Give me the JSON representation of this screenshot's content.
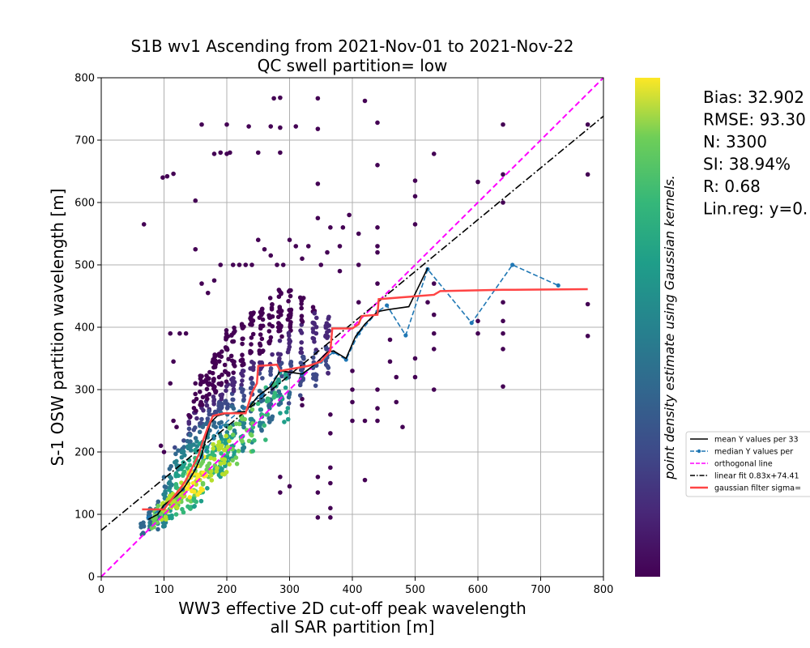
{
  "chart_data": {
    "type": "scatter",
    "title": "S1B wv1 Ascending from 2021-Nov-01 to 2021-Nov-22",
    "subtitle": "QC swell partition= low",
    "xlabel_line1": "WW3 effective 2D cut-off peak wavelength",
    "xlabel_line2": "all SAR partition [m]",
    "ylabel": "S-1 OSW partition wavelength [m]",
    "xlim": [
      0,
      800
    ],
    "ylim": [
      0,
      800
    ],
    "xticks": [
      0,
      100,
      200,
      300,
      400,
      500,
      600,
      700,
      800
    ],
    "yticks": [
      0,
      100,
      200,
      300,
      400,
      500,
      600,
      700,
      800
    ],
    "grid": true,
    "colorbar": {
      "colormap": "viridis",
      "label": "point density estimate using Gaussian kernels."
    },
    "stats": [
      "Bias: 32.902",
      "RMSE: 93.30",
      "N: 3300",
      "SI: 38.94%",
      "R: 0.68",
      "Lin.reg: y=0."
    ],
    "legend": {
      "location": "right, outside plot",
      "entries": [
        {
          "label": "mean Y values per 33",
          "color": "#000000",
          "style": "solid"
        },
        {
          "label": "median Y values per",
          "color": "#1f77b4",
          "style": "dashed-marker"
        },
        {
          "label": "orthogonal line",
          "color": "#ff00ff",
          "style": "dashed"
        },
        {
          "label": "linear fit 0.83x+74.41",
          "color": "#000000",
          "style": "dashdot"
        },
        {
          "label": "gaussian filter sigma=",
          "color": "#ff4444",
          "style": "solid-thick"
        }
      ]
    },
    "orthogonal_line": {
      "slope": 1,
      "intercept": 0
    },
    "linear_fit": {
      "slope": 0.83,
      "intercept": 74.41
    },
    "mean_line": [
      [
        75,
        92
      ],
      [
        90,
        100
      ],
      [
        100,
        115
      ],
      [
        120,
        130
      ],
      [
        130,
        140
      ],
      [
        140,
        155
      ],
      [
        150,
        172
      ],
      [
        160,
        195
      ],
      [
        170,
        235
      ],
      [
        175,
        248
      ],
      [
        185,
        258
      ],
      [
        200,
        262
      ],
      [
        230,
        265
      ],
      [
        250,
        290
      ],
      [
        270,
        305
      ],
      [
        285,
        330
      ],
      [
        300,
        328
      ],
      [
        320,
        325
      ],
      [
        340,
        340
      ],
      [
        360,
        360
      ],
      [
        370,
        362
      ],
      [
        390,
        350
      ],
      [
        405,
        385
      ],
      [
        420,
        405
      ],
      [
        440,
        425
      ],
      [
        455,
        428
      ],
      [
        490,
        433
      ],
      [
        520,
        495
      ]
    ],
    "median_line": [
      [
        75,
        95
      ],
      [
        100,
        112
      ],
      [
        130,
        140
      ],
      [
        160,
        192
      ],
      [
        190,
        240
      ],
      [
        220,
        265
      ],
      [
        255,
        290
      ],
      [
        285,
        330
      ],
      [
        320,
        325
      ],
      [
        350,
        345
      ],
      [
        370,
        360
      ],
      [
        390,
        348
      ],
      [
        410,
        390
      ],
      [
        440,
        425
      ],
      [
        455,
        435
      ],
      [
        485,
        387
      ],
      [
        520,
        493
      ],
      [
        590,
        407
      ],
      [
        655,
        500
      ],
      [
        728,
        467
      ]
    ],
    "gaussian_line": [
      [
        65,
        108
      ],
      [
        100,
        108
      ],
      [
        105,
        115
      ],
      [
        115,
        128
      ],
      [
        125,
        140
      ],
      [
        135,
        155
      ],
      [
        145,
        175
      ],
      [
        155,
        195
      ],
      [
        162,
        218
      ],
      [
        170,
        240
      ],
      [
        178,
        258
      ],
      [
        195,
        262
      ],
      [
        230,
        262
      ],
      [
        240,
        295
      ],
      [
        248,
        310
      ],
      [
        250,
        338
      ],
      [
        280,
        340
      ],
      [
        285,
        330
      ],
      [
        330,
        338
      ],
      [
        350,
        345
      ],
      [
        365,
        362
      ],
      [
        368,
        398
      ],
      [
        400,
        398
      ],
      [
        410,
        405
      ],
      [
        415,
        418
      ],
      [
        440,
        420
      ],
      [
        442,
        445
      ],
      [
        480,
        448
      ],
      [
        530,
        452
      ],
      [
        540,
        458
      ],
      [
        640,
        460
      ],
      [
        775,
        461
      ]
    ],
    "scatter_columns": [
      {
        "x": 65,
        "ymin": 65,
        "ymax": 90,
        "density": 0.35
      },
      {
        "x": 78,
        "ymin": 70,
        "ymax": 110,
        "density": 0.4
      },
      {
        "x": 90,
        "ymin": 75,
        "ymax": 125,
        "density": 0.45
      },
      {
        "x": 100,
        "ymin": 80,
        "ymax": 160,
        "density": 0.55
      },
      {
        "x": 110,
        "ymin": 85,
        "ymax": 180,
        "density": 0.65
      },
      {
        "x": 120,
        "ymin": 95,
        "ymax": 210,
        "density": 0.8
      },
      {
        "x": 130,
        "ymin": 100,
        "ymax": 230,
        "density": 0.9
      },
      {
        "x": 140,
        "ymin": 105,
        "ymax": 260,
        "density": 0.95
      },
      {
        "x": 150,
        "ymin": 110,
        "ymax": 300,
        "density": 0.9
      },
      {
        "x": 160,
        "ymin": 120,
        "ymax": 330,
        "density": 0.9
      },
      {
        "x": 170,
        "ymin": 140,
        "ymax": 330,
        "density": 0.8
      },
      {
        "x": 180,
        "ymin": 150,
        "ymax": 360,
        "density": 0.75
      },
      {
        "x": 190,
        "ymin": 160,
        "ymax": 380,
        "density": 0.7
      },
      {
        "x": 200,
        "ymin": 175,
        "ymax": 400,
        "density": 0.65
      },
      {
        "x": 210,
        "ymin": 185,
        "ymax": 400,
        "density": 0.6
      },
      {
        "x": 225,
        "ymin": 200,
        "ymax": 420,
        "density": 0.55
      },
      {
        "x": 240,
        "ymin": 215,
        "ymax": 430,
        "density": 0.5
      },
      {
        "x": 255,
        "ymin": 230,
        "ymax": 440,
        "density": 0.45
      },
      {
        "x": 270,
        "ymin": 245,
        "ymax": 450,
        "density": 0.38
      },
      {
        "x": 285,
        "ymin": 260,
        "ymax": 460,
        "density": 0.35
      },
      {
        "x": 300,
        "ymin": 275,
        "ymax": 460,
        "density": 0.3
      },
      {
        "x": 320,
        "ymin": 290,
        "ymax": 450,
        "density": 0.25
      },
      {
        "x": 340,
        "ymin": 300,
        "ymax": 440,
        "density": 0.22
      },
      {
        "x": 360,
        "ymin": 320,
        "ymax": 420,
        "density": 0.2
      }
    ],
    "scatter_outliers": [
      [
        68,
        565
      ],
      [
        98,
        640
      ],
      [
        105,
        642
      ],
      [
        115,
        646
      ],
      [
        150,
        603
      ],
      [
        160,
        725
      ],
      [
        180,
        678
      ],
      [
        190,
        680
      ],
      [
        200,
        678
      ],
      [
        205,
        680
      ],
      [
        200,
        725
      ],
      [
        235,
        722
      ],
      [
        250,
        680
      ],
      [
        275,
        767
      ],
      [
        270,
        722
      ],
      [
        285,
        768
      ],
      [
        285,
        680
      ],
      [
        285,
        720
      ],
      [
        310,
        722
      ],
      [
        345,
        767
      ],
      [
        345,
        718
      ],
      [
        345,
        630
      ],
      [
        420,
        763
      ],
      [
        440,
        728
      ],
      [
        440,
        660
      ],
      [
        500,
        635
      ],
      [
        500,
        610
      ],
      [
        500,
        565
      ],
      [
        530,
        678
      ],
      [
        530,
        300
      ],
      [
        600,
        633
      ],
      [
        600,
        410
      ],
      [
        640,
        725
      ],
      [
        640,
        645
      ],
      [
        640,
        600
      ],
      [
        640,
        305
      ],
      [
        640,
        365
      ],
      [
        775,
        725
      ],
      [
        775,
        645
      ],
      [
        775,
        437
      ],
      [
        775,
        386
      ],
      [
        110,
        390
      ],
      [
        125,
        390
      ],
      [
        115,
        345
      ],
      [
        110,
        310
      ],
      [
        95,
        210
      ],
      [
        100,
        200
      ],
      [
        115,
        250
      ],
      [
        120,
        240
      ],
      [
        135,
        390
      ],
      [
        150,
        310
      ],
      [
        150,
        525
      ],
      [
        160,
        470
      ],
      [
        170,
        455
      ],
      [
        180,
        475
      ],
      [
        190,
        500
      ],
      [
        210,
        500
      ],
      [
        220,
        500
      ],
      [
        230,
        500
      ],
      [
        240,
        500
      ],
      [
        250,
        540
      ],
      [
        260,
        525
      ],
      [
        270,
        515
      ],
      [
        280,
        500
      ],
      [
        290,
        500
      ],
      [
        300,
        540
      ],
      [
        310,
        530
      ],
      [
        320,
        510
      ],
      [
        330,
        530
      ],
      [
        345,
        575
      ],
      [
        365,
        560
      ],
      [
        385,
        560
      ],
      [
        395,
        580
      ],
      [
        410,
        440
      ],
      [
        410,
        550
      ],
      [
        420,
        250
      ],
      [
        420,
        155
      ],
      [
        440,
        520
      ],
      [
        440,
        470
      ],
      [
        460,
        345
      ],
      [
        500,
        350
      ],
      [
        500,
        320
      ],
      [
        520,
        440
      ],
      [
        530,
        390
      ],
      [
        530,
        365
      ],
      [
        530,
        420
      ],
      [
        530,
        470
      ],
      [
        600,
        390
      ],
      [
        640,
        440
      ],
      [
        640,
        410
      ],
      [
        640,
        390
      ],
      [
        440,
        560
      ],
      [
        440,
        530
      ],
      [
        410,
        500
      ],
      [
        380,
        530
      ],
      [
        380,
        490
      ],
      [
        350,
        500
      ],
      [
        360,
        520
      ],
      [
        320,
        285
      ],
      [
        365,
        95
      ],
      [
        365,
        110
      ],
      [
        365,
        150
      ],
      [
        365,
        175
      ],
      [
        365,
        230
      ],
      [
        365,
        260
      ],
      [
        345,
        160
      ],
      [
        345,
        135
      ],
      [
        345,
        95
      ],
      [
        285,
        135
      ],
      [
        285,
        160
      ],
      [
        300,
        145
      ],
      [
        320,
        275
      ],
      [
        400,
        330
      ],
      [
        400,
        300
      ],
      [
        400,
        280
      ],
      [
        400,
        250
      ],
      [
        440,
        300
      ],
      [
        440,
        270
      ],
      [
        440,
        250
      ],
      [
        460,
        380
      ],
      [
        470,
        320
      ],
      [
        470,
        280
      ],
      [
        480,
        240
      ]
    ]
  }
}
